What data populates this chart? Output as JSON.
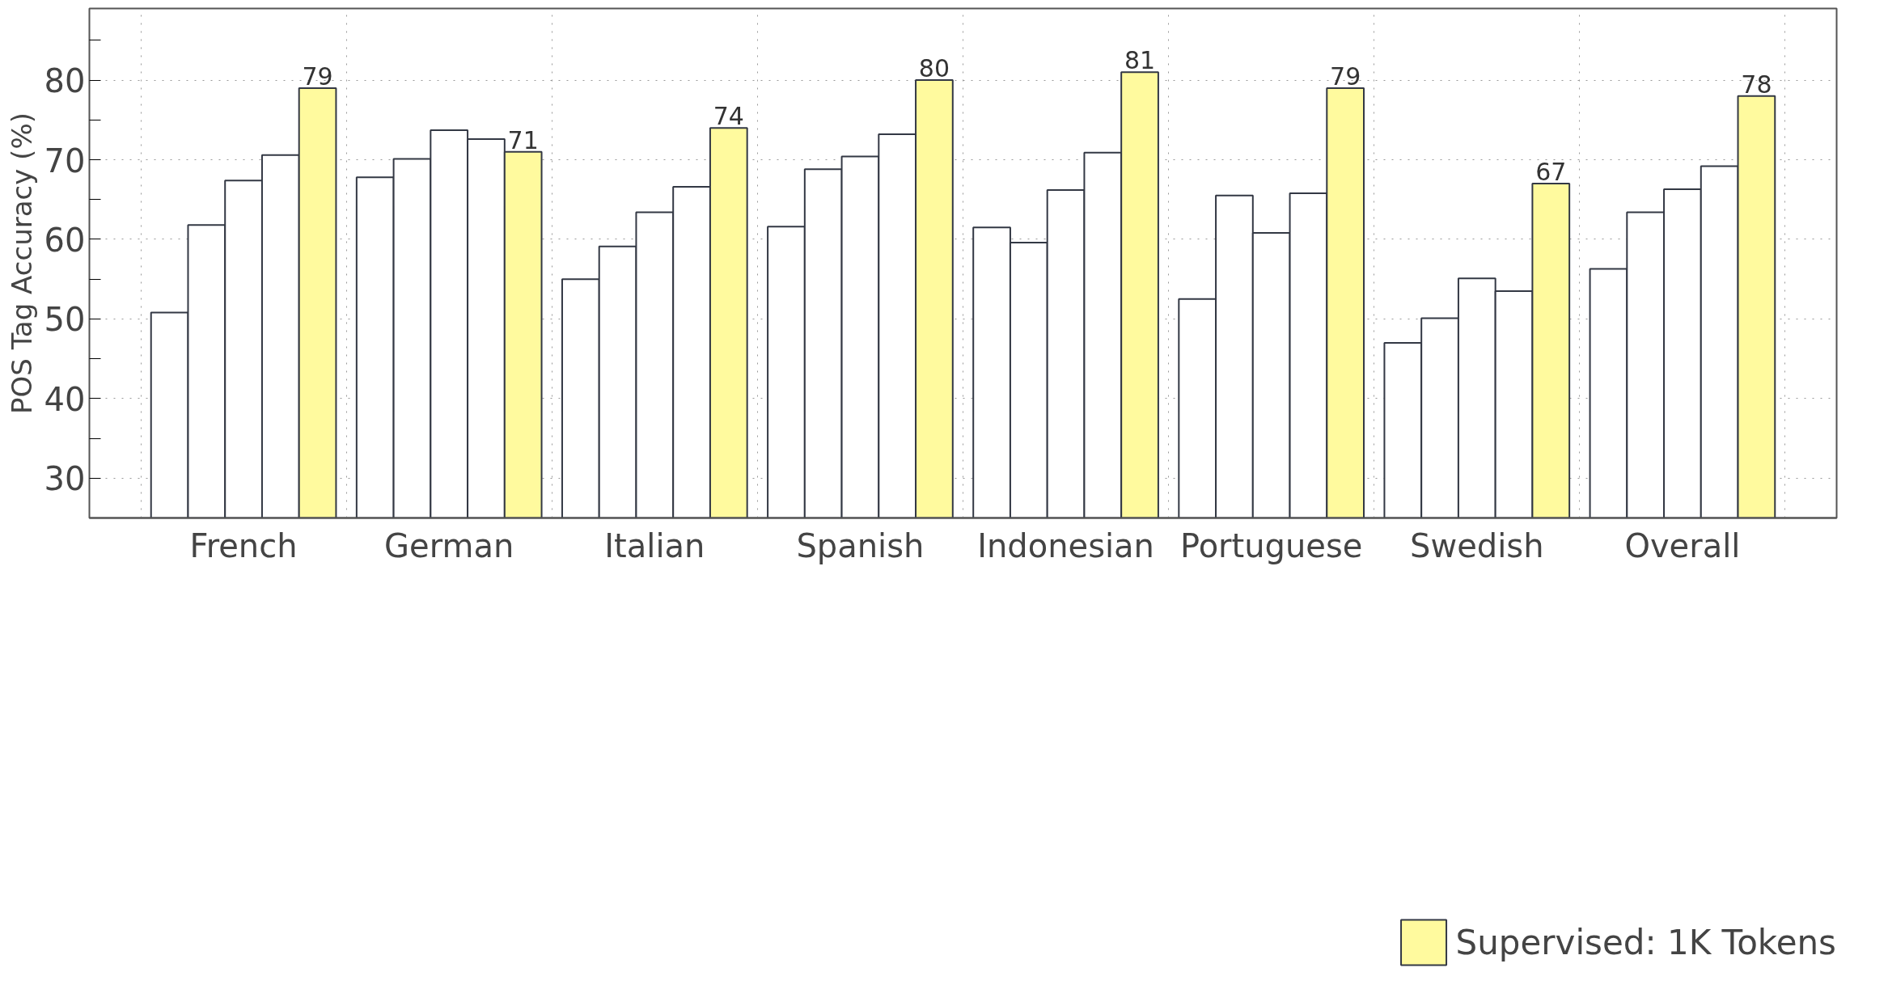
{
  "chart_data": {
    "type": "bar",
    "ylabel": "POS Tag Accuracy (%)",
    "categories": [
      "French",
      "German",
      "Italian",
      "Spanish",
      "Indonesian",
      "Portuguese",
      "Swedish",
      "Overall"
    ],
    "series": [
      {
        "color": "#ffffff",
        "values": [
          50.8,
          67.8,
          55.0,
          61.6,
          61.5,
          52.5,
          47.0,
          56.3
        ]
      },
      {
        "color": "#ffffff",
        "values": [
          61.8,
          70.1,
          59.1,
          68.8,
          59.6,
          65.5,
          50.1,
          63.4
        ]
      },
      {
        "color": "#ffffff",
        "values": [
          67.4,
          73.7,
          63.4,
          70.4,
          66.2,
          60.8,
          55.1,
          66.3
        ]
      },
      {
        "color": "#ffffff",
        "values": [
          70.6,
          72.6,
          66.6,
          73.2,
          70.9,
          65.8,
          53.5,
          69.2
        ]
      },
      {
        "name": "Supervised: 1K Tokens",
        "color": "#fffa9e",
        "values": [
          79,
          71,
          74,
          80,
          81,
          79,
          67,
          78
        ],
        "value_labels": [
          "79",
          "71",
          "74",
          "80",
          "81",
          "79",
          "67",
          "78"
        ]
      }
    ],
    "ylim": [
      25,
      89
    ],
    "yticks": [
      30,
      {
        "value": 35,
        "label": null
      },
      40,
      {
        "value": 45,
        "label": null
      },
      50,
      {
        "value": 55,
        "label": null
      },
      60,
      {
        "value": 65,
        "label": null
      },
      70,
      {
        "value": 75,
        "label": null
      },
      80,
      {
        "value": 85,
        "label": null
      }
    ],
    "grid": true,
    "legend": "bottom right"
  }
}
